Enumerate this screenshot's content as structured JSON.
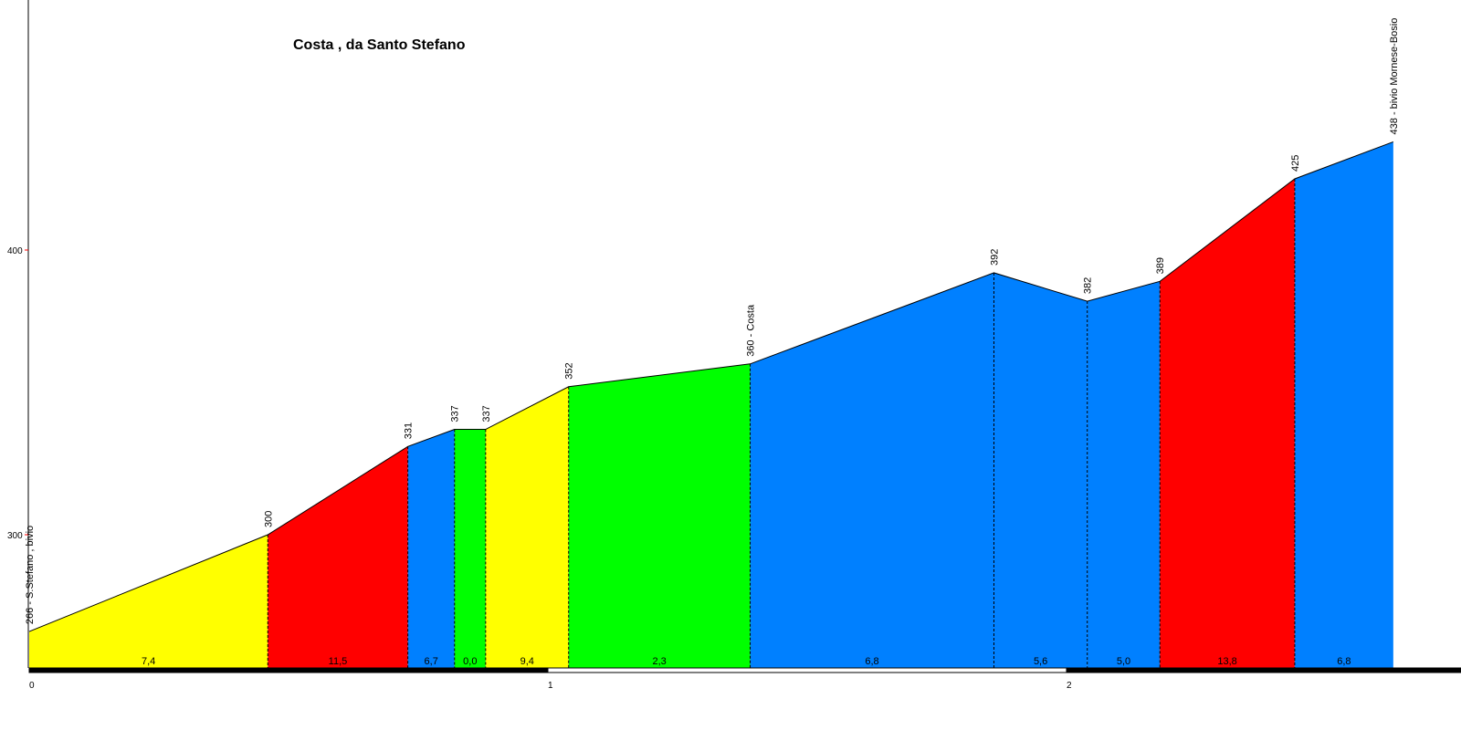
{
  "chart_data": {
    "type": "area",
    "title": "Costa , da Santo Stefano",
    "xlabel": "",
    "ylabel": "",
    "xlim": [
      0,
      2.76
    ],
    "ylim": [
      253,
      500
    ],
    "x_ticks": [
      "0",
      "1",
      "2"
    ],
    "y_ticks": [
      "300",
      "400"
    ],
    "grid": false,
    "legend": "none",
    "profile": [
      {
        "x": 0.0,
        "y": 266
      },
      {
        "x": 0.46,
        "y": 300
      },
      {
        "x": 0.73,
        "y": 331
      },
      {
        "x": 0.82,
        "y": 337
      },
      {
        "x": 0.88,
        "y": 337
      },
      {
        "x": 1.04,
        "y": 352
      },
      {
        "x": 1.39,
        "y": 360
      },
      {
        "x": 1.86,
        "y": 392
      },
      {
        "x": 2.04,
        "y": 382
      },
      {
        "x": 2.18,
        "y": 389
      },
      {
        "x": 2.44,
        "y": 425
      },
      {
        "x": 2.63,
        "y": 438
      }
    ],
    "point_labels": [
      "266 - S.Stefano , bivio",
      "300",
      "331",
      "337",
      "337",
      "352",
      "360 - Costa",
      "392",
      "382",
      "389",
      "425",
      "438 - bivio Mornese-Bosio"
    ],
    "segments": [
      {
        "gradient": "7,4",
        "color": "#ffff00"
      },
      {
        "gradient": "11,5",
        "color": "#ff0000"
      },
      {
        "gradient": "6,7",
        "color": "#0080ff"
      },
      {
        "gradient": "0,0",
        "color": "#00ff00"
      },
      {
        "gradient": "9,4",
        "color": "#ffff00"
      },
      {
        "gradient": "2,3",
        "color": "#00ff00"
      },
      {
        "gradient": "6,8",
        "color": "#0080ff"
      },
      {
        "gradient": "5,6",
        "color": "#0080ff"
      },
      {
        "gradient": "5,0",
        "color": "#0080ff"
      },
      {
        "gradient": "13,8",
        "color": "#ff0000"
      },
      {
        "gradient": "6,8",
        "color": "#0080ff"
      }
    ]
  }
}
